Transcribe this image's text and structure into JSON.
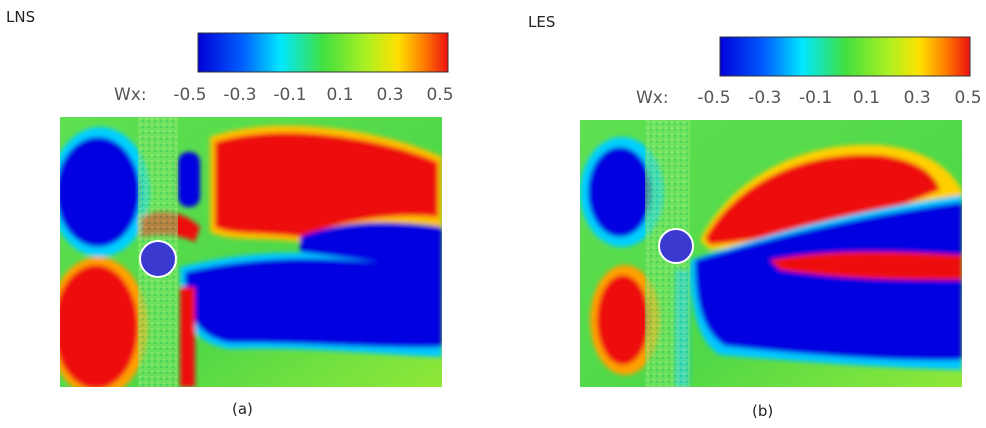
{
  "panels": [
    {
      "title": "LNS",
      "colorbar": {
        "label": "Wx:",
        "ticks": [
          -0.5,
          -0.3,
          -0.1,
          0.1,
          0.3,
          0.5
        ]
      },
      "caption": "(a)"
    },
    {
      "title": "LES",
      "colorbar": {
        "label": "Wx:",
        "ticks": [
          -0.5,
          -0.3,
          -0.1,
          0.1,
          0.3,
          0.5
        ]
      },
      "caption": "(b)"
    }
  ]
}
